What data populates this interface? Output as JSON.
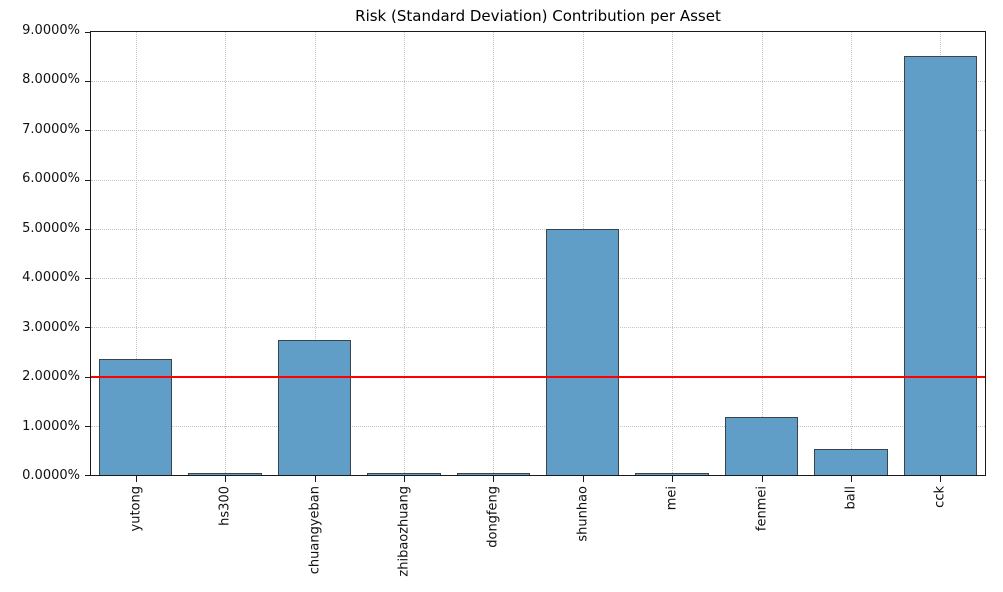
{
  "chart_data": {
    "type": "bar",
    "title": "Risk (Standard Deviation) Contribution per Asset",
    "categories": [
      "yutong",
      "hs300",
      "chuangyeban",
      "zhibaozhuang",
      "dongfeng",
      "shunhao",
      "mei",
      "fenmei",
      "ball",
      "cck"
    ],
    "values": [
      2.32,
      0.005,
      2.72,
      0.004,
      0.004,
      4.95,
      0.003,
      1.15,
      0.5,
      8.45
    ],
    "unit": "%",
    "xlabel": "",
    "ylabel": "",
    "ylim": [
      0,
      9
    ],
    "ytick_step": 1,
    "ytick_labels": [
      "0.0000%",
      "1.0000%",
      "2.0000%",
      "3.0000%",
      "4.0000%",
      "5.0000%",
      "6.0000%",
      "7.0000%",
      "8.0000%",
      "9.0000%"
    ],
    "grid": "dotted, both axes",
    "legend": "none",
    "threshold_line": {
      "value": 2.0,
      "color": "#ff0000"
    },
    "bar_color": "#619ec7",
    "bar_edge_color": "#39444d",
    "bar_width_fraction": 0.8
  }
}
